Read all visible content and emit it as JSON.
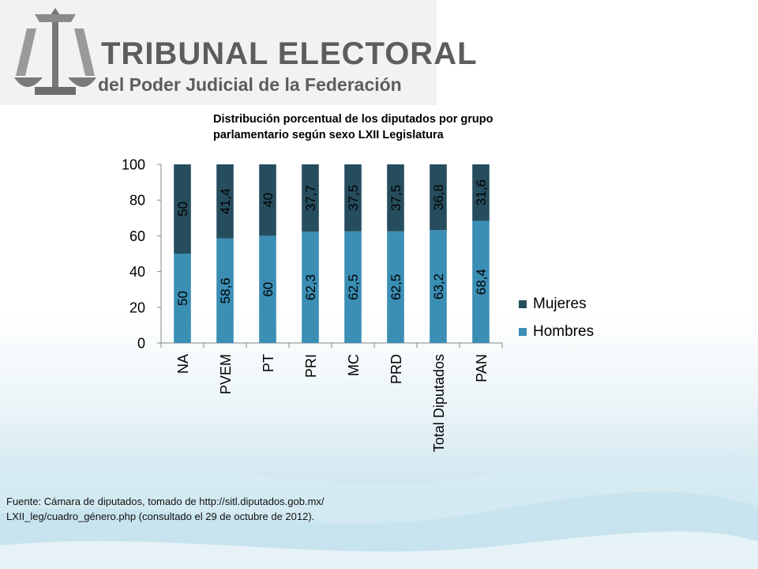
{
  "header": {
    "logo_title": "TRIBUNAL ELECTORAL",
    "logo_subtitle": "del Poder Judicial de la Federación"
  },
  "colors": {
    "mujeres": "#264d5e",
    "hombres": "#3b8eb4",
    "logo_text": "#5d5d5d"
  },
  "icons": {
    "logo": "scales-of-justice-icon"
  },
  "chart_data": {
    "type": "bar",
    "stacked": true,
    "title": "Distribución porcentual de los diputados por grupo parlamentario según sexo LXII Legislatura",
    "categories": [
      "NA",
      "PVEM",
      "PT",
      "PRI",
      "MC",
      "PRD",
      "Total Diputados",
      "PAN"
    ],
    "series": [
      {
        "name": "Hombres",
        "values": [
          50,
          58.6,
          60,
          62.3,
          62.5,
          62.5,
          63.2,
          68.4
        ],
        "labels": [
          "50",
          "58,6",
          "60",
          "62,3",
          "62,5",
          "62,5",
          "63,2",
          "68,4"
        ]
      },
      {
        "name": "Mujeres",
        "values": [
          50,
          41.4,
          40,
          37.7,
          37.5,
          37.5,
          36.8,
          31.6
        ],
        "labels": [
          "50",
          "41,4",
          "40",
          "37,7",
          "37,5",
          "37,5",
          "36,8",
          "31,6"
        ]
      }
    ],
    "ylim": [
      0,
      100
    ],
    "yticks": [
      "0",
      "20",
      "40",
      "60",
      "80",
      "100"
    ],
    "legend": [
      "Mujeres",
      "Hombres"
    ],
    "legend_position": "right",
    "grid": false
  },
  "footer": {
    "source": "Fuente: Cámara de diputados, tomado de http://sitl.diputados.gob.mx/ LXII_leg/cuadro_género.php (consultado el 29 de octubre de 2012)."
  }
}
